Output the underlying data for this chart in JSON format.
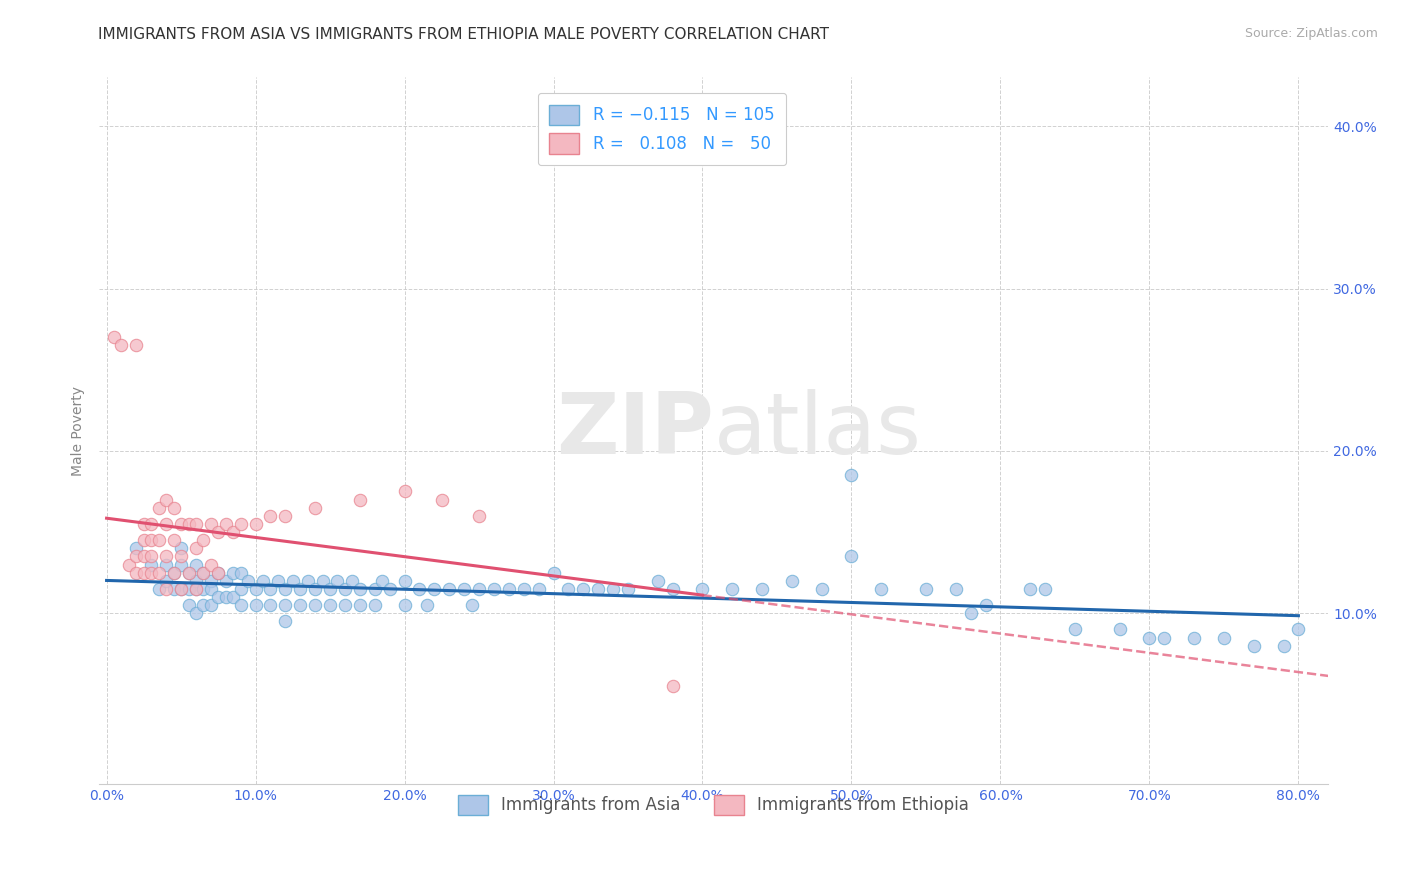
{
  "title": "IMMIGRANTS FROM ASIA VS IMMIGRANTS FROM ETHIOPIA MALE POVERTY CORRELATION CHART",
  "source_text": "Source: ZipAtlas.com",
  "ylabel": "Male Poverty",
  "xlim": [
    -0.005,
    0.82
  ],
  "ylim": [
    -0.005,
    0.43
  ],
  "xticks": [
    0.0,
    0.1,
    0.2,
    0.3,
    0.4,
    0.5,
    0.6,
    0.7,
    0.8
  ],
  "xticklabels": [
    "0.0%",
    "10.0%",
    "20.0%",
    "30.0%",
    "40.0%",
    "50.0%",
    "60.0%",
    "70.0%",
    "80.0%"
  ],
  "yticks": [
    0.1,
    0.2,
    0.3,
    0.4
  ],
  "yticklabels": [
    "10.0%",
    "20.0%",
    "30.0%",
    "40.0%"
  ],
  "asia_color": "#aec6e8",
  "asia_edge": "#6baed6",
  "ethiopia_color": "#f4b8c1",
  "ethiopia_edge": "#e8838f",
  "trendline_asia_color": "#2166ac",
  "trendline_ethiopia_color": "#e05070",
  "R_asia": -0.115,
  "N_asia": 105,
  "R_ethiopia": 0.108,
  "N_ethiopia": 50,
  "legend_label_asia": "Immigrants from Asia",
  "legend_label_ethiopia": "Immigrants from Ethiopia",
  "watermark_zip": "ZIP",
  "watermark_atlas": "atlas",
  "background_color": "#ffffff",
  "grid_color": "#cccccc",
  "tick_color": "#4169e1",
  "asia_x": [
    0.02,
    0.03,
    0.035,
    0.04,
    0.04,
    0.045,
    0.045,
    0.05,
    0.05,
    0.05,
    0.055,
    0.055,
    0.055,
    0.06,
    0.06,
    0.06,
    0.06,
    0.065,
    0.065,
    0.065,
    0.07,
    0.07,
    0.07,
    0.075,
    0.075,
    0.08,
    0.08,
    0.085,
    0.085,
    0.09,
    0.09,
    0.09,
    0.095,
    0.1,
    0.1,
    0.105,
    0.11,
    0.11,
    0.115,
    0.12,
    0.12,
    0.12,
    0.125,
    0.13,
    0.13,
    0.135,
    0.14,
    0.14,
    0.145,
    0.15,
    0.15,
    0.155,
    0.16,
    0.16,
    0.165,
    0.17,
    0.17,
    0.18,
    0.18,
    0.185,
    0.19,
    0.2,
    0.2,
    0.21,
    0.215,
    0.22,
    0.23,
    0.24,
    0.245,
    0.25,
    0.26,
    0.27,
    0.28,
    0.29,
    0.3,
    0.31,
    0.32,
    0.33,
    0.34,
    0.35,
    0.37,
    0.38,
    0.4,
    0.42,
    0.44,
    0.46,
    0.48,
    0.5,
    0.52,
    0.55,
    0.57,
    0.59,
    0.62,
    0.65,
    0.68,
    0.7,
    0.73,
    0.75,
    0.77,
    0.79,
    0.5,
    0.58,
    0.63,
    0.71,
    0.8
  ],
  "asia_y": [
    0.14,
    0.13,
    0.115,
    0.13,
    0.12,
    0.125,
    0.115,
    0.14,
    0.13,
    0.115,
    0.125,
    0.115,
    0.105,
    0.13,
    0.12,
    0.115,
    0.1,
    0.125,
    0.115,
    0.105,
    0.12,
    0.115,
    0.105,
    0.125,
    0.11,
    0.12,
    0.11,
    0.125,
    0.11,
    0.125,
    0.115,
    0.105,
    0.12,
    0.115,
    0.105,
    0.12,
    0.115,
    0.105,
    0.12,
    0.115,
    0.105,
    0.095,
    0.12,
    0.115,
    0.105,
    0.12,
    0.115,
    0.105,
    0.12,
    0.115,
    0.105,
    0.12,
    0.115,
    0.105,
    0.12,
    0.115,
    0.105,
    0.115,
    0.105,
    0.12,
    0.115,
    0.12,
    0.105,
    0.115,
    0.105,
    0.115,
    0.115,
    0.115,
    0.105,
    0.115,
    0.115,
    0.115,
    0.115,
    0.115,
    0.125,
    0.115,
    0.115,
    0.115,
    0.115,
    0.115,
    0.12,
    0.115,
    0.115,
    0.115,
    0.115,
    0.12,
    0.115,
    0.185,
    0.115,
    0.115,
    0.115,
    0.105,
    0.115,
    0.09,
    0.09,
    0.085,
    0.085,
    0.085,
    0.08,
    0.08,
    0.135,
    0.1,
    0.115,
    0.085,
    0.09
  ],
  "ethiopia_x": [
    0.005,
    0.01,
    0.015,
    0.02,
    0.02,
    0.02,
    0.025,
    0.025,
    0.025,
    0.025,
    0.03,
    0.03,
    0.03,
    0.03,
    0.035,
    0.035,
    0.035,
    0.04,
    0.04,
    0.04,
    0.04,
    0.045,
    0.045,
    0.045,
    0.05,
    0.05,
    0.05,
    0.055,
    0.055,
    0.06,
    0.06,
    0.06,
    0.065,
    0.065,
    0.07,
    0.07,
    0.075,
    0.075,
    0.08,
    0.085,
    0.09,
    0.1,
    0.11,
    0.12,
    0.14,
    0.17,
    0.2,
    0.225,
    0.25,
    0.38
  ],
  "ethiopia_y": [
    0.27,
    0.265,
    0.13,
    0.135,
    0.125,
    0.265,
    0.155,
    0.145,
    0.135,
    0.125,
    0.155,
    0.145,
    0.135,
    0.125,
    0.165,
    0.145,
    0.125,
    0.17,
    0.155,
    0.135,
    0.115,
    0.165,
    0.145,
    0.125,
    0.155,
    0.135,
    0.115,
    0.155,
    0.125,
    0.155,
    0.14,
    0.115,
    0.145,
    0.125,
    0.155,
    0.13,
    0.15,
    0.125,
    0.155,
    0.15,
    0.155,
    0.155,
    0.16,
    0.16,
    0.165,
    0.17,
    0.175,
    0.17,
    0.16,
    0.055
  ],
  "title_fontsize": 11,
  "axis_fontsize": 10,
  "tick_fontsize": 10,
  "legend_fontsize": 12
}
